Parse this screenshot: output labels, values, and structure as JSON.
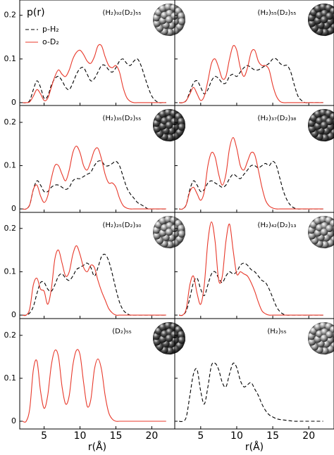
{
  "chart_data": [
    {
      "type": "line",
      "title": "(H₂)₉₂(D₂)₅₅",
      "ylabel": "p(r)",
      "x": [
        2,
        2.5,
        3,
        3.5,
        4,
        4.5,
        5,
        5.5,
        6,
        6.5,
        7,
        7.5,
        8,
        8.5,
        9,
        9.5,
        10,
        10.5,
        11,
        11.5,
        12,
        12.5,
        13,
        13.5,
        14,
        14.5,
        15,
        15.5,
        16,
        16.5,
        17,
        17.5,
        18,
        18.5,
        19,
        19.5,
        20,
        20.5,
        21,
        21.5,
        22
      ],
      "series": [
        {
          "name": "p-H₂",
          "color": "#000000",
          "dash": true,
          "values": [
            0,
            0,
            0.005,
            0.03,
            0.05,
            0.035,
            0.01,
            0.015,
            0.04,
            0.055,
            0.06,
            0.05,
            0.035,
            0.03,
            0.045,
            0.065,
            0.078,
            0.08,
            0.065,
            0.05,
            0.055,
            0.07,
            0.085,
            0.085,
            0.075,
            0.07,
            0.08,
            0.095,
            0.1,
            0.09,
            0.085,
            0.095,
            0.1,
            0.085,
            0.06,
            0.035,
            0.015,
            0.005,
            0,
            0,
            0
          ]
        },
        {
          "name": "o-D₂",
          "color": "#e8392b",
          "dash": false,
          "values": [
            0,
            0,
            0.002,
            0.015,
            0.03,
            0.02,
            0.005,
            0.01,
            0.035,
            0.06,
            0.075,
            0.065,
            0.06,
            0.075,
            0.1,
            0.115,
            0.12,
            0.11,
            0.095,
            0.09,
            0.105,
            0.13,
            0.13,
            0.105,
            0.085,
            0.08,
            0.085,
            0.07,
            0.035,
            0.012,
            0.003,
            0,
            0,
            0,
            0,
            0,
            0,
            0,
            0,
            0,
            0
          ]
        }
      ],
      "xlim": [
        1.6,
        23.2
      ],
      "ylim": [
        -0.0065,
        0.235
      ],
      "xticks": [
        5,
        10,
        15,
        20
      ],
      "yticks": [
        0,
        0.1,
        0.2
      ],
      "dark": false
    },
    {
      "type": "line",
      "title": "(H₂)₅₅(D₂)₅₅",
      "x": [
        2,
        2.5,
        3,
        3.5,
        4,
        4.5,
        5,
        5.5,
        6,
        6.5,
        7,
        7.5,
        8,
        8.5,
        9,
        9.5,
        10,
        10.5,
        11,
        11.5,
        12,
        12.5,
        13,
        13.5,
        14,
        14.5,
        15,
        15.5,
        16,
        16.5,
        17,
        17.5,
        18,
        18.5,
        19,
        19.5,
        20,
        20.5,
        21,
        21.5,
        22
      ],
      "series": [
        {
          "color": "#000000",
          "dash": true,
          "values": [
            0,
            0,
            0.005,
            0.025,
            0.045,
            0.05,
            0.035,
            0.02,
            0.03,
            0.05,
            0.06,
            0.055,
            0.045,
            0.045,
            0.06,
            0.065,
            0.06,
            0.07,
            0.08,
            0.085,
            0.08,
            0.075,
            0.075,
            0.08,
            0.085,
            0.09,
            0.1,
            0.1,
            0.09,
            0.085,
            0.085,
            0.07,
            0.04,
            0.015,
            0.005,
            0,
            0,
            0,
            0,
            0,
            0
          ]
        },
        {
          "color": "#e8392b",
          "dash": false,
          "values": [
            0,
            0,
            0.005,
            0.02,
            0.035,
            0.02,
            0.005,
            0.015,
            0.05,
            0.09,
            0.1,
            0.08,
            0.055,
            0.06,
            0.1,
            0.13,
            0.12,
            0.08,
            0.06,
            0.08,
            0.115,
            0.12,
            0.095,
            0.085,
            0.085,
            0.075,
            0.04,
            0.015,
            0.003,
            0,
            0,
            0,
            0,
            0,
            0,
            0,
            0,
            0,
            0,
            0,
            0
          ]
        }
      ],
      "xlim": [
        1.4,
        23.5
      ],
      "ylim": [
        -0.0065,
        0.235
      ],
      "xticks": [
        5,
        10,
        15,
        20
      ],
      "yticks": [
        0,
        0.1,
        0.2
      ],
      "dark": true
    },
    {
      "type": "line",
      "title": "(H₂)₃₅(D₂)₅₅",
      "x": [
        2,
        2.5,
        3,
        3.5,
        4,
        4.5,
        5,
        5.5,
        6,
        6.5,
        7,
        7.5,
        8,
        8.5,
        9,
        9.5,
        10,
        10.5,
        11,
        11.5,
        12,
        12.5,
        13,
        13.5,
        14,
        14.5,
        15,
        15.5,
        16,
        16.5,
        17,
        17.5,
        18,
        18.5,
        19,
        19.5,
        20,
        20.5,
        21,
        21.5,
        22
      ],
      "series": [
        {
          "color": "#000000",
          "dash": true,
          "values": [
            0,
            0,
            0.01,
            0.045,
            0.065,
            0.055,
            0.04,
            0.04,
            0.05,
            0.055,
            0.055,
            0.05,
            0.045,
            0.05,
            0.065,
            0.07,
            0.07,
            0.075,
            0.08,
            0.085,
            0.1,
            0.11,
            0.11,
            0.1,
            0.1,
            0.105,
            0.11,
            0.1,
            0.075,
            0.05,
            0.035,
            0.025,
            0.015,
            0.01,
            0.005,
            0,
            0,
            0,
            0,
            0,
            0
          ]
        },
        {
          "color": "#e8392b",
          "dash": false,
          "values": [
            0,
            0,
            0.01,
            0.045,
            0.055,
            0.03,
            0.015,
            0.03,
            0.07,
            0.1,
            0.1,
            0.08,
            0.065,
            0.09,
            0.13,
            0.145,
            0.13,
            0.1,
            0.09,
            0.11,
            0.135,
            0.14,
            0.115,
            0.08,
            0.06,
            0.06,
            0.05,
            0.025,
            0.008,
            0.002,
            0,
            0,
            0,
            0,
            0,
            0,
            0,
            0,
            0,
            0,
            0
          ]
        }
      ],
      "xlim": [
        1.6,
        23.2
      ],
      "ylim": [
        -0.008,
        0.239
      ],
      "xticks": [
        5,
        10,
        15,
        20
      ],
      "yticks": [
        0,
        0.1,
        0.2
      ],
      "dark": true
    },
    {
      "type": "line",
      "title": "(H₂)₃₇(D₂)₃₈",
      "x": [
        2,
        2.5,
        3,
        3.5,
        4,
        4.5,
        5,
        5.5,
        6,
        6.5,
        7,
        7.5,
        8,
        8.5,
        9,
        9.5,
        10,
        10.5,
        11,
        11.5,
        12,
        12.5,
        13,
        13.5,
        14,
        14.5,
        15,
        15.5,
        16,
        16.5,
        17,
        17.5,
        18,
        18.5,
        19,
        19.5,
        20,
        20.5,
        21,
        21.5,
        22
      ],
      "series": [
        {
          "color": "#000000",
          "dash": true,
          "values": [
            0,
            0,
            0.01,
            0.045,
            0.065,
            0.055,
            0.04,
            0.045,
            0.06,
            0.065,
            0.06,
            0.055,
            0.05,
            0.055,
            0.07,
            0.08,
            0.075,
            0.07,
            0.08,
            0.09,
            0.1,
            0.1,
            0.095,
            0.1,
            0.105,
            0.1,
            0.11,
            0.1,
            0.07,
            0.04,
            0.02,
            0.008,
            0.002,
            0,
            0,
            0,
            0,
            0,
            0,
            0,
            0
          ]
        },
        {
          "color": "#e8392b",
          "dash": false,
          "values": [
            0,
            0,
            0.01,
            0.04,
            0.05,
            0.035,
            0.02,
            0.04,
            0.1,
            0.13,
            0.12,
            0.08,
            0.055,
            0.08,
            0.14,
            0.165,
            0.14,
            0.1,
            0.09,
            0.11,
            0.13,
            0.125,
            0.09,
            0.05,
            0.02,
            0.007,
            0.002,
            0,
            0,
            0,
            0,
            0,
            0,
            0,
            0,
            0,
            0,
            0,
            0,
            0,
            0
          ]
        }
      ],
      "xlim": [
        1.4,
        23.5
      ],
      "ylim": [
        -0.008,
        0.239
      ],
      "xticks": [
        5,
        10,
        15,
        20
      ],
      "yticks": [
        0,
        0.1,
        0.2
      ],
      "dark": true
    },
    {
      "type": "line",
      "title": "(H₂)₂₅(D₂)₃₀",
      "x": [
        2,
        2.5,
        3,
        3.5,
        4,
        4.5,
        5,
        5.5,
        6,
        6.5,
        7,
        7.5,
        8,
        8.5,
        9,
        9.5,
        10,
        10.5,
        11,
        11.5,
        12,
        12.5,
        13,
        13.5,
        14,
        14.5,
        15,
        15.5,
        16,
        16.5,
        17,
        17.5,
        18,
        18.5,
        19,
        19.5,
        20,
        20.5,
        21,
        21.5,
        22
      ],
      "series": [
        {
          "color": "#000000",
          "dash": true,
          "values": [
            0,
            0,
            0.005,
            0.02,
            0.05,
            0.075,
            0.075,
            0.06,
            0.055,
            0.07,
            0.09,
            0.095,
            0.085,
            0.08,
            0.09,
            0.105,
            0.11,
            0.115,
            0.12,
            0.11,
            0.09,
            0.11,
            0.135,
            0.14,
            0.125,
            0.095,
            0.06,
            0.03,
            0.012,
            0.004,
            0,
            0,
            0,
            0,
            0,
            0,
            0,
            0,
            0,
            0,
            0
          ]
        },
        {
          "color": "#e8392b",
          "dash": false,
          "values": [
            0,
            0,
            0.015,
            0.07,
            0.085,
            0.06,
            0.055,
            0.025,
            0.06,
            0.13,
            0.15,
            0.12,
            0.09,
            0.1,
            0.14,
            0.16,
            0.14,
            0.11,
            0.1,
            0.115,
            0.11,
            0.08,
            0.055,
            0.035,
            0.015,
            0.005,
            0,
            0,
            0,
            0,
            0,
            0,
            0,
            0,
            0,
            0,
            0,
            0,
            0,
            0,
            0
          ]
        }
      ],
      "xlim": [
        1.6,
        23.2
      ],
      "ylim": [
        -0.008,
        0.237
      ],
      "xticks": [
        5,
        10,
        15,
        20
      ],
      "yticks": [
        0,
        0.1,
        0.2
      ],
      "dark": false
    },
    {
      "type": "line",
      "title": "(H₂)₄₂(D₂)₁₃",
      "x": [
        2,
        2.5,
        3,
        3.5,
        4,
        4.5,
        5,
        5.5,
        6,
        6.5,
        7,
        7.5,
        8,
        8.5,
        9,
        9.5,
        10,
        10.5,
        11,
        11.5,
        12,
        12.5,
        13,
        13.5,
        14,
        14.5,
        15,
        15.5,
        16,
        16.5,
        17,
        17.5,
        18,
        18.5,
        19,
        19.5,
        20,
        20.5,
        21,
        21.5,
        22
      ],
      "series": [
        {
          "color": "#000000",
          "dash": true,
          "values": [
            0,
            0,
            0.01,
            0.04,
            0.075,
            0.085,
            0.06,
            0.045,
            0.07,
            0.095,
            0.1,
            0.085,
            0.075,
            0.09,
            0.1,
            0.095,
            0.1,
            0.115,
            0.12,
            0.115,
            0.105,
            0.1,
            0.09,
            0.08,
            0.075,
            0.06,
            0.04,
            0.02,
            0.008,
            0.002,
            0,
            0,
            0,
            0,
            0,
            0,
            0,
            0,
            0,
            0,
            0
          ]
        },
        {
          "color": "#e8392b",
          "dash": false,
          "values": [
            0,
            0,
            0.015,
            0.07,
            0.09,
            0.05,
            0.025,
            0.07,
            0.17,
            0.215,
            0.17,
            0.08,
            0.09,
            0.17,
            0.21,
            0.15,
            0.095,
            0.1,
            0.095,
            0.09,
            0.075,
            0.055,
            0.03,
            0.01,
            0.003,
            0,
            0,
            0,
            0,
            0,
            0,
            0,
            0,
            0,
            0,
            0,
            0,
            0,
            0,
            0,
            0
          ]
        }
      ],
      "xlim": [
        1.4,
        23.5
      ],
      "ylim": [
        -0.008,
        0.237
      ],
      "xticks": [
        5,
        10,
        15,
        20
      ],
      "yticks": [
        0,
        0.1,
        0.2
      ],
      "dark": false
    },
    {
      "type": "line",
      "title": "(D₂)₅₅",
      "xlabel": "r(Å)",
      "x": [
        2,
        2.5,
        3,
        3.5,
        4,
        4.5,
        5,
        5.5,
        6,
        6.5,
        7,
        7.5,
        8,
        8.5,
        9,
        9.5,
        10,
        10.5,
        11,
        11.5,
        12,
        12.5,
        13,
        13.5,
        14,
        14.5,
        15,
        15.5,
        16,
        16.5,
        17,
        17.5,
        18,
        18.5,
        19,
        19.5,
        20,
        20.5,
        21,
        21.5,
        22
      ],
      "series": [
        {
          "color": "#e8392b",
          "dash": false,
          "values": [
            0,
            0,
            0.03,
            0.12,
            0.14,
            0.07,
            0.03,
            0.06,
            0.13,
            0.165,
            0.15,
            0.08,
            0.04,
            0.06,
            0.13,
            0.165,
            0.155,
            0.09,
            0.035,
            0.05,
            0.12,
            0.145,
            0.12,
            0.06,
            0.02,
            0.005,
            0,
            0,
            0,
            0,
            0,
            0,
            0,
            0,
            0,
            0,
            0,
            0,
            0,
            0,
            0
          ]
        }
      ],
      "xlim": [
        1.6,
        23.2
      ],
      "ylim": [
        -0.018,
        0.239
      ],
      "xticks": [
        5,
        10,
        15,
        20
      ],
      "yticks": [
        0,
        0.1,
        0.2
      ],
      "dark": true
    },
    {
      "type": "line",
      "title": "(H₂)₅₅",
      "xlabel": "r(Å)",
      "x": [
        2,
        2.5,
        3,
        3.5,
        4,
        4.5,
        5,
        5.5,
        6,
        6.5,
        7,
        7.5,
        8,
        8.5,
        9,
        9.5,
        10,
        10.5,
        11,
        11.5,
        12,
        12.5,
        13,
        13.5,
        14,
        14.5,
        15,
        15.5,
        16,
        16.5,
        17,
        17.5,
        18,
        18.5,
        19,
        19.5,
        20,
        20.5,
        21,
        21.5,
        22
      ],
      "series": [
        {
          "color": "#000000",
          "dash": true,
          "values": [
            0,
            0,
            0.01,
            0.06,
            0.11,
            0.12,
            0.07,
            0.04,
            0.08,
            0.13,
            0.135,
            0.12,
            0.09,
            0.08,
            0.11,
            0.135,
            0.125,
            0.095,
            0.08,
            0.085,
            0.09,
            0.075,
            0.06,
            0.04,
            0.025,
            0.015,
            0.01,
            0.006,
            0.004,
            0.003,
            0.002,
            0.001,
            0,
            0,
            0,
            0,
            0,
            0,
            0,
            0,
            0
          ]
        }
      ],
      "xlim": [
        1.4,
        23.5
      ],
      "ylim": [
        -0.018,
        0.239
      ],
      "xticks": [
        5,
        10,
        15,
        20
      ],
      "yticks": [
        0,
        0.1,
        0.2
      ],
      "dark": false
    }
  ]
}
